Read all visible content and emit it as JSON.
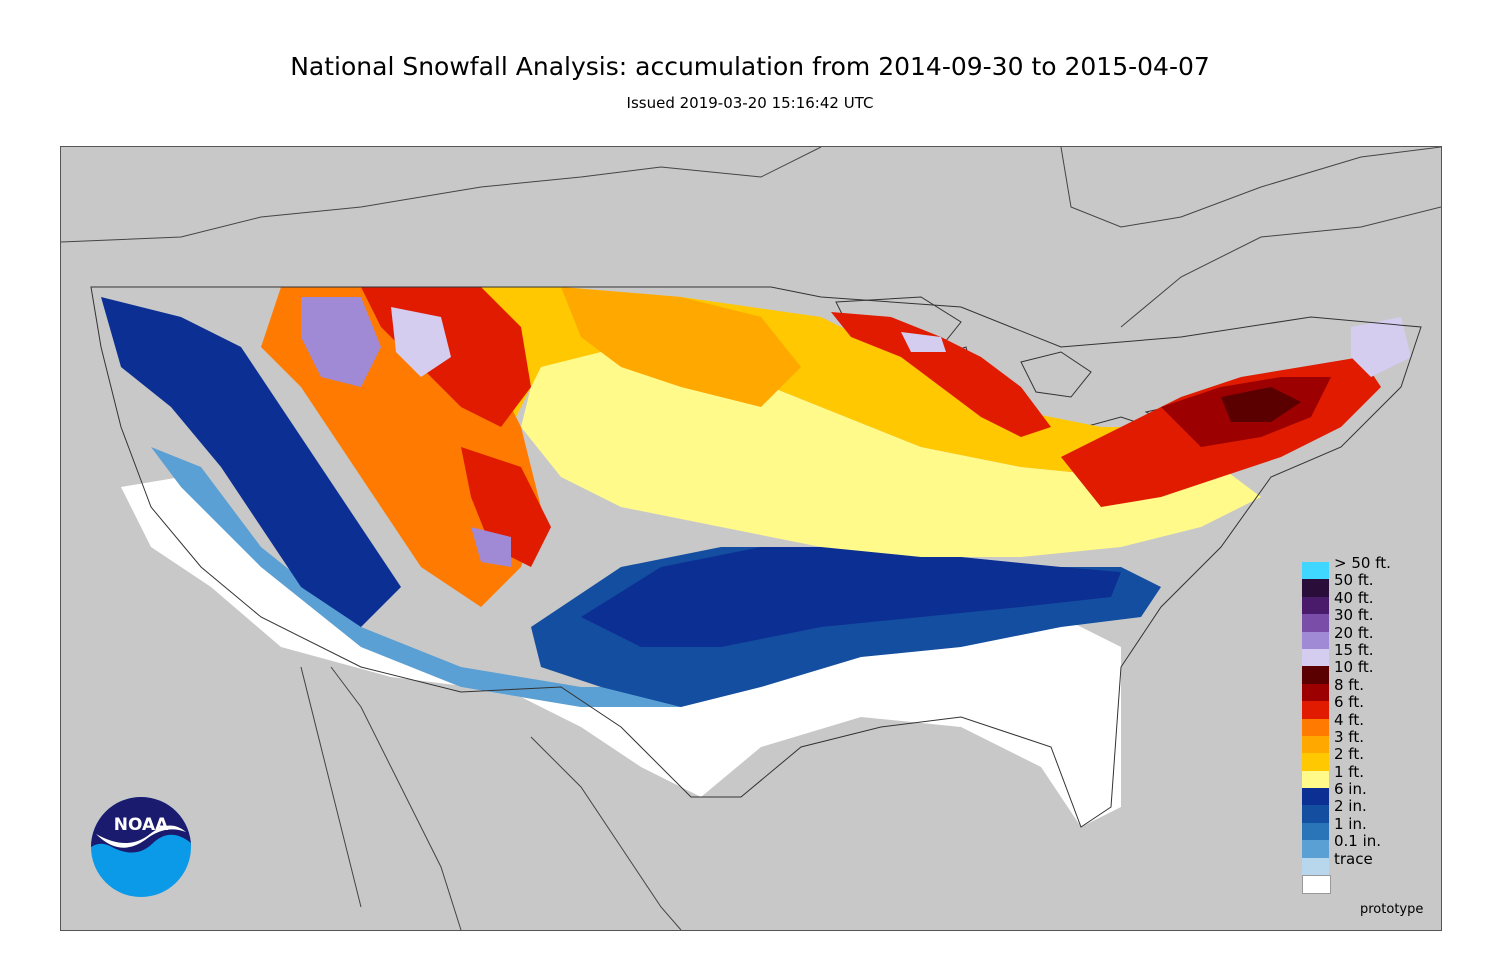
{
  "header": {
    "title": "National Snowfall Analysis: accumulation from 2014-09-30 to 2015-04-07",
    "subtitle": "Issued 2019-03-20 15:16:42 UTC"
  },
  "map": {
    "background_color": "#c8c8c8",
    "land_color": "#c8c8c8",
    "border_color": "#444444"
  },
  "legend": {
    "items": [
      {
        "label": "> 50 ft.",
        "color": "#3fd6ff"
      },
      {
        "label": "50 ft.",
        "color": "#2a0d38"
      },
      {
        "label": "40 ft.",
        "color": "#4a1a6b"
      },
      {
        "label": "30 ft.",
        "color": "#7a4ea8"
      },
      {
        "label": "20 ft.",
        "color": "#a08ad6"
      },
      {
        "label": "15 ft.",
        "color": "#d4cdf0"
      },
      {
        "label": "10 ft.",
        "color": "#5a0000"
      },
      {
        "label": "8 ft.",
        "color": "#9c0000"
      },
      {
        "label": "6 ft.",
        "color": "#e01b00"
      },
      {
        "label": "4 ft.",
        "color": "#ff7a00"
      },
      {
        "label": "3 ft.",
        "color": "#ffa800"
      },
      {
        "label": "2 ft.",
        "color": "#ffc800"
      },
      {
        "label": "1 ft.",
        "color": "#fffa8a"
      },
      {
        "label": "6 in.",
        "color": "#0c2f94"
      },
      {
        "label": "2 in.",
        "color": "#144ea0"
      },
      {
        "label": "1 in.",
        "color": "#2a74b8"
      },
      {
        "label": "0.1 in.",
        "color": "#5aa0d4"
      },
      {
        "label": "trace",
        "color": "#b8d6ec"
      },
      {
        "label": "",
        "color": "#ffffff"
      }
    ]
  },
  "footer": {
    "prototype_label": "prototype"
  },
  "logo": {
    "text": "NOAA",
    "icon": "noaa-logo-icon"
  }
}
